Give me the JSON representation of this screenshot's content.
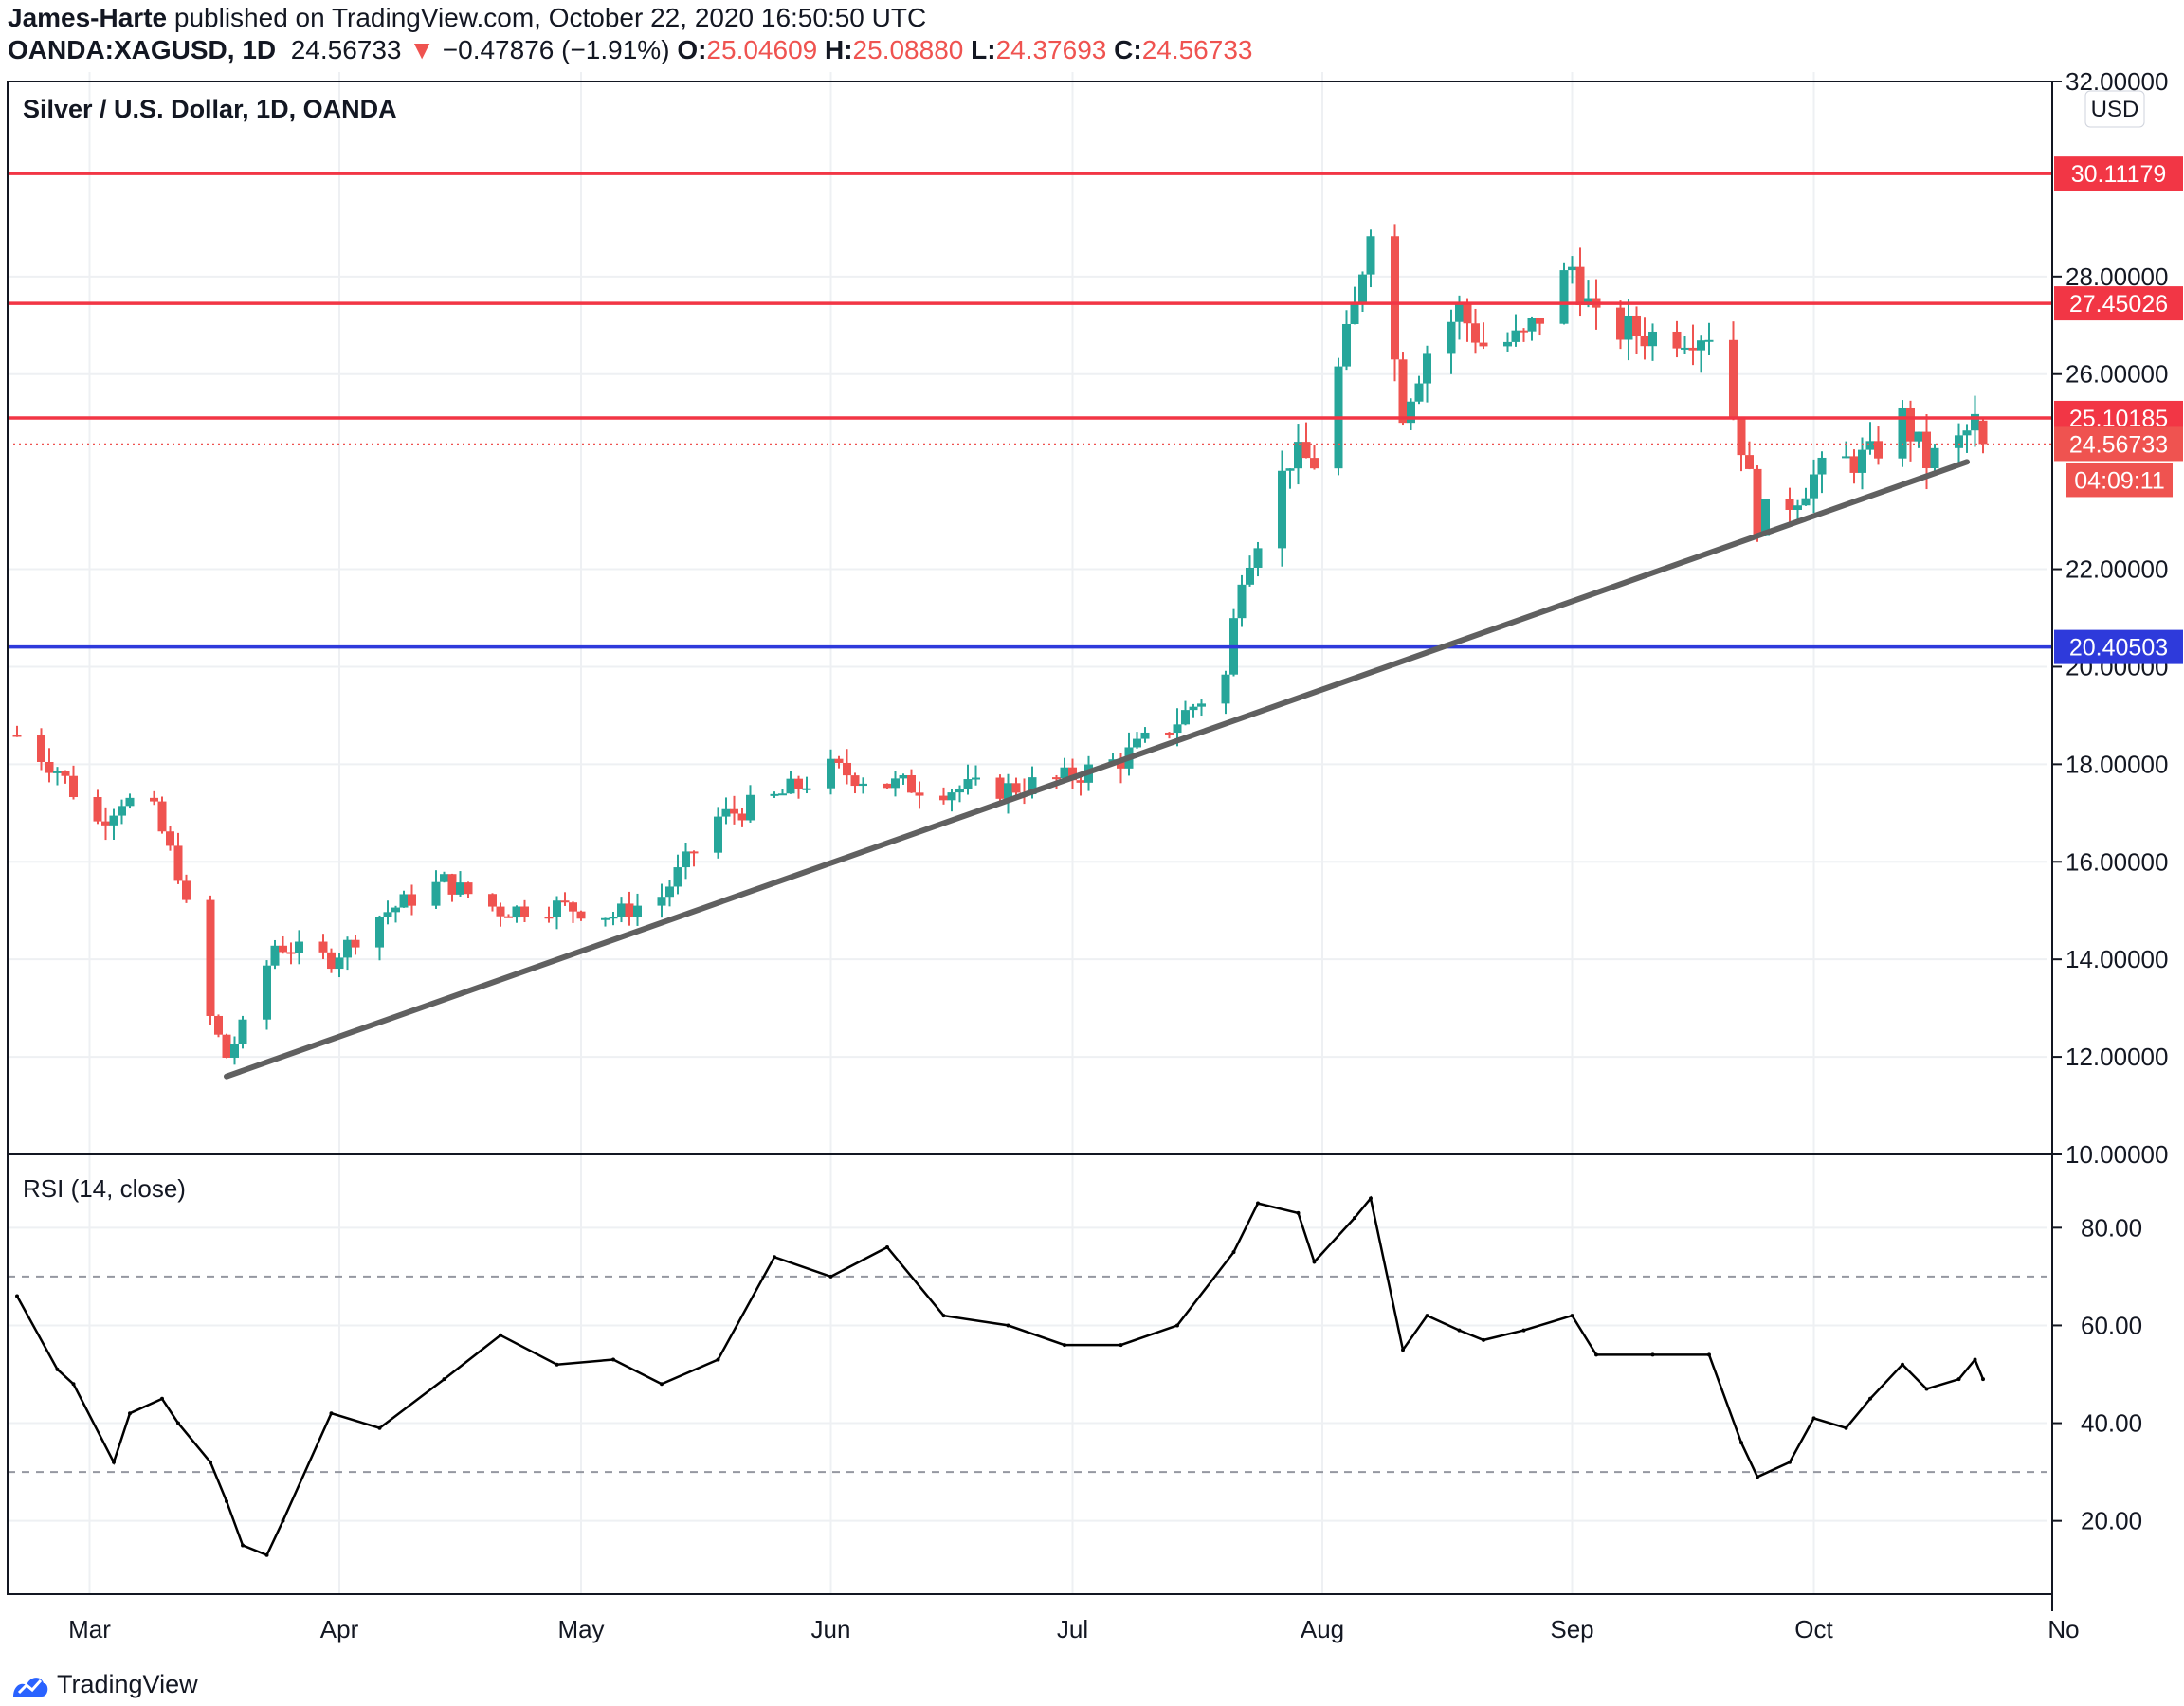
{
  "header": {
    "publisher_line": "James-Harte published on TradingView.com, October 22, 2020 16:50:50 UTC",
    "publisher_name": "James-Harte",
    "publisher_rest": " published on TradingView.com, October 22, 2020 16:50:50 UTC",
    "symbol": "OANDA:XAGUSD, 1D",
    "last": "24.56733",
    "arrow": "▼",
    "change": "−0.47876 (−1.91%)",
    "o_label": "O:",
    "o_val": "25.04609",
    "h_label": "H:",
    "h_val": "25.08880",
    "l_label": "L:",
    "l_val": "24.37693",
    "c_label": "C:",
    "c_val": "24.56733"
  },
  "chart_title": "Silver / U.S. Dollar, 1D, OANDA",
  "currency": "USD",
  "price_axis_labels": [
    "32.00000",
    "28.00000",
    "26.00000",
    "22.00000",
    "20.00000",
    "18.00000",
    "16.00000",
    "14.00000",
    "12.00000",
    "10.00000"
  ],
  "horizontal_levels": [
    {
      "price": 30.11179,
      "label": "30.11179",
      "color": "#f23645"
    },
    {
      "price": 27.45026,
      "label": "27.45026",
      "color": "#f23645"
    },
    {
      "price": 25.10185,
      "label": "25.10185",
      "color": "#f23645"
    },
    {
      "price": 20.40503,
      "label": "20.40503",
      "color": "#2e3adb"
    }
  ],
  "last_price_label": "24.56733",
  "countdown_label": "04:09:11",
  "rsi_title": "RSI (14, close)",
  "rsi_axis_labels": [
    "80.00",
    "60.00",
    "40.00",
    "20.00"
  ],
  "time_labels": [
    "Mar",
    "Apr",
    "May",
    "Jun",
    "Jul",
    "Aug",
    "Sep",
    "Oct",
    "No"
  ],
  "footer": {
    "brand": "TradingView"
  },
  "colors": {
    "up": "#26a69a",
    "down": "#ef5350",
    "trendline": "#606060",
    "grid": "#eef0f3",
    "border": "#131722",
    "level_red": "#f23645",
    "level_blue": "#2e3adb"
  },
  "chart_data": [
    {
      "type": "candlestick",
      "title": "Silver / U.S. Dollar, 1D, OANDA",
      "y_unit": "USD",
      "ylim": [
        10,
        32
      ],
      "x_range": [
        "2020-02-21",
        "2020-10-30"
      ],
      "grid": true,
      "anchors": [
        {
          "date": "2020-02-21",
          "price": 18.6
        },
        {
          "date": "2020-02-26",
          "price": 17.9
        },
        {
          "date": "2020-03-02",
          "price": 16.8
        },
        {
          "date": "2020-03-05",
          "price": 17.3
        },
        {
          "date": "2020-03-09",
          "price": 17.0
        },
        {
          "date": "2020-03-12",
          "price": 15.8
        },
        {
          "date": "2020-03-16",
          "price": 12.8
        },
        {
          "date": "2020-03-18",
          "price": 12.0
        },
        {
          "date": "2020-03-20",
          "price": 12.6
        },
        {
          "date": "2020-03-24",
          "price": 14.3
        },
        {
          "date": "2020-03-31",
          "price": 14.0
        },
        {
          "date": "2020-04-06",
          "price": 14.9
        },
        {
          "date": "2020-04-14",
          "price": 15.6
        },
        {
          "date": "2020-04-21",
          "price": 15.0
        },
        {
          "date": "2020-04-28",
          "price": 15.1
        },
        {
          "date": "2020-05-05",
          "price": 14.9
        },
        {
          "date": "2020-05-11",
          "price": 15.3
        },
        {
          "date": "2020-05-18",
          "price": 16.9
        },
        {
          "date": "2020-05-25",
          "price": 17.3
        },
        {
          "date": "2020-06-01",
          "price": 17.9
        },
        {
          "date": "2020-06-08",
          "price": 17.6
        },
        {
          "date": "2020-06-15",
          "price": 17.5
        },
        {
          "date": "2020-06-23",
          "price": 17.5
        },
        {
          "date": "2020-06-30",
          "price": 17.7
        },
        {
          "date": "2020-07-07",
          "price": 18.1
        },
        {
          "date": "2020-07-14",
          "price": 18.9
        },
        {
          "date": "2020-07-20",
          "price": 19.8
        },
        {
          "date": "2020-07-22",
          "price": 22.0
        },
        {
          "date": "2020-07-24",
          "price": 22.7
        },
        {
          "date": "2020-07-28",
          "price": 24.3
        },
        {
          "date": "2020-07-31",
          "price": 24.2
        },
        {
          "date": "2020-08-05",
          "price": 27.3
        },
        {
          "date": "2020-08-07",
          "price": 29.2
        },
        {
          "date": "2020-08-11",
          "price": 25.3
        },
        {
          "date": "2020-08-14",
          "price": 26.5
        },
        {
          "date": "2020-08-18",
          "price": 27.3
        },
        {
          "date": "2020-08-21",
          "price": 26.6
        },
        {
          "date": "2020-08-26",
          "price": 26.7
        },
        {
          "date": "2020-09-01",
          "price": 28.2
        },
        {
          "date": "2020-09-04",
          "price": 27.0
        },
        {
          "date": "2020-09-11",
          "price": 26.8
        },
        {
          "date": "2020-09-18",
          "price": 26.9
        },
        {
          "date": "2020-09-22",
          "price": 24.6
        },
        {
          "date": "2020-09-24",
          "price": 23.0
        },
        {
          "date": "2020-09-28",
          "price": 23.4
        },
        {
          "date": "2020-10-01",
          "price": 23.9
        },
        {
          "date": "2020-10-05",
          "price": 24.2
        },
        {
          "date": "2020-10-08",
          "price": 24.3
        },
        {
          "date": "2020-10-12",
          "price": 25.1
        },
        {
          "date": "2020-10-15",
          "price": 24.2
        },
        {
          "date": "2020-10-19",
          "price": 24.6
        },
        {
          "date": "2020-10-21",
          "price": 25.0
        },
        {
          "date": "2020-10-22",
          "price": 24.57
        }
      ],
      "last_bar": {
        "date": "2020-10-22",
        "open": 25.04609,
        "high": 25.0888,
        "low": 24.37693,
        "close": 24.56733
      },
      "trendline": [
        {
          "date": "2020-03-18",
          "price": 11.6
        },
        {
          "date": "2020-10-20",
          "price": 24.2
        }
      ],
      "levels": [
        30.11179,
        27.45026,
        25.10185,
        20.40503
      ]
    },
    {
      "type": "line",
      "title": "RSI (14, close)",
      "ylim": [
        5,
        95
      ],
      "bands": [
        30,
        70
      ],
      "x": [
        "2020-02-21",
        "2020-02-26",
        "2020-02-28",
        "2020-03-04",
        "2020-03-06",
        "2020-03-10",
        "2020-03-12",
        "2020-03-16",
        "2020-03-18",
        "2020-03-20",
        "2020-03-23",
        "2020-03-25",
        "2020-03-31",
        "2020-04-06",
        "2020-04-14",
        "2020-04-21",
        "2020-04-28",
        "2020-05-05",
        "2020-05-11",
        "2020-05-18",
        "2020-05-25",
        "2020-06-01",
        "2020-06-08",
        "2020-06-15",
        "2020-06-23",
        "2020-06-30",
        "2020-07-07",
        "2020-07-14",
        "2020-07-21",
        "2020-07-24",
        "2020-07-29",
        "2020-07-31",
        "2020-08-05",
        "2020-08-07",
        "2020-08-11",
        "2020-08-14",
        "2020-08-18",
        "2020-08-21",
        "2020-08-26",
        "2020-09-01",
        "2020-09-04",
        "2020-09-11",
        "2020-09-18",
        "2020-09-22",
        "2020-09-24",
        "2020-09-28",
        "2020-10-01",
        "2020-10-05",
        "2020-10-08",
        "2020-10-12",
        "2020-10-15",
        "2020-10-19",
        "2020-10-21",
        "2020-10-22"
      ],
      "values": [
        66,
        51,
        48,
        32,
        42,
        45,
        40,
        32,
        24,
        15,
        13,
        20,
        42,
        39,
        49,
        58,
        52,
        53,
        48,
        53,
        74,
        70,
        76,
        62,
        60,
        56,
        56,
        60,
        75,
        85,
        83,
        73,
        82,
        86,
        55,
        62,
        59,
        57,
        59,
        62,
        54,
        54,
        54,
        36,
        29,
        32,
        41,
        39,
        45,
        52,
        47,
        49,
        53,
        49
      ]
    }
  ]
}
